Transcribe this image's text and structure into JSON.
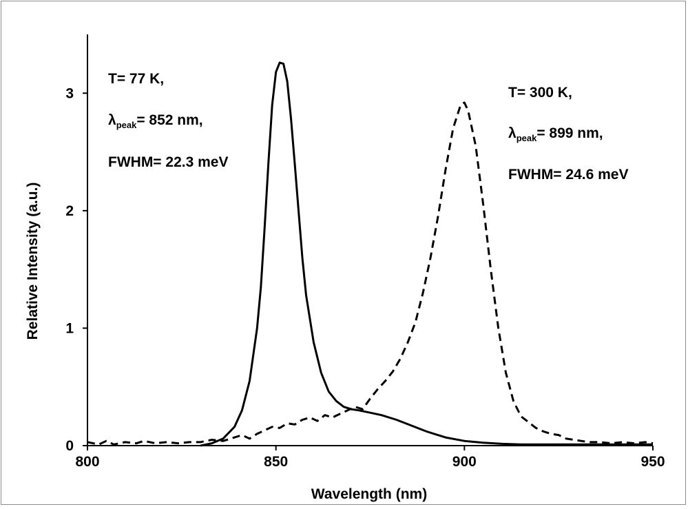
{
  "chart_data": {
    "type": "line",
    "title": "",
    "xlabel": "Wavelength (nm)",
    "ylabel": "Relative Intensity (a.u.)",
    "xlim": [
      800,
      950
    ],
    "ylim": [
      0,
      3.5
    ],
    "xticks": [
      800,
      850,
      900,
      950
    ],
    "yticks": [
      0,
      1,
      2,
      3
    ],
    "grid": false,
    "legend": "none",
    "series": [
      {
        "style": "solid",
        "color": "#000000",
        "x": [
          830,
          833,
          836,
          839,
          841,
          843,
          845,
          846,
          847,
          848,
          849,
          850,
          851,
          852,
          853,
          854,
          855,
          856,
          857,
          858,
          860,
          862,
          864,
          866,
          868,
          870,
          872,
          875,
          878,
          882,
          886,
          890,
          895,
          900,
          905,
          910,
          915,
          920,
          930,
          940,
          950
        ],
        "y": [
          0.0,
          0.02,
          0.06,
          0.16,
          0.3,
          0.55,
          1.0,
          1.35,
          1.85,
          2.4,
          2.9,
          3.18,
          3.26,
          3.25,
          3.1,
          2.78,
          2.4,
          2.0,
          1.6,
          1.28,
          0.88,
          0.62,
          0.46,
          0.38,
          0.33,
          0.31,
          0.3,
          0.28,
          0.26,
          0.22,
          0.17,
          0.12,
          0.07,
          0.04,
          0.025,
          0.015,
          0.01,
          0.01,
          0.01,
          0.01,
          0.01
        ]
      },
      {
        "style": "dashed",
        "color": "#000000",
        "x": [
          800,
          803,
          805,
          807,
          810,
          813,
          815,
          818,
          821,
          824,
          827,
          830,
          833,
          836,
          839,
          841,
          843,
          845,
          847,
          849,
          851,
          853,
          855,
          857,
          859,
          861,
          863,
          865,
          867,
          869,
          871,
          873,
          875,
          877,
          879,
          881,
          883,
          885,
          887,
          889,
          891,
          893,
          895,
          897,
          899,
          900,
          901,
          903,
          905,
          907,
          909,
          911,
          913,
          915,
          917,
          919,
          921,
          923,
          925,
          927,
          929,
          931,
          933,
          936,
          939,
          942,
          945,
          948,
          950
        ],
        "y": [
          0.03,
          0.01,
          0.04,
          0.01,
          0.03,
          0.02,
          0.04,
          0.02,
          0.03,
          0.02,
          0.03,
          0.03,
          0.05,
          0.04,
          0.07,
          0.09,
          0.06,
          0.1,
          0.13,
          0.16,
          0.15,
          0.19,
          0.18,
          0.22,
          0.24,
          0.21,
          0.26,
          0.24,
          0.27,
          0.3,
          0.33,
          0.31,
          0.4,
          0.48,
          0.55,
          0.63,
          0.74,
          0.88,
          1.05,
          1.3,
          1.6,
          1.95,
          2.35,
          2.7,
          2.9,
          2.92,
          2.85,
          2.55,
          2.05,
          1.5,
          1.0,
          0.62,
          0.38,
          0.25,
          0.2,
          0.15,
          0.12,
          0.1,
          0.09,
          0.06,
          0.05,
          0.04,
          0.03,
          0.03,
          0.02,
          0.03,
          0.02,
          0.03,
          0.02
        ]
      }
    ],
    "annotations": [
      {
        "t": "T= 77 K,",
        "lambda_sym": "λ",
        "lambda_sub": "peak",
        "lambda_rest": "= 852 nm,",
        "fwhm": "FWHM= 22.3 meV"
      },
      {
        "t": "T= 300 K,",
        "lambda_sym": "λ",
        "lambda_sub": "peak",
        "lambda_rest": "= 899 nm,",
        "fwhm": "FWHM= 24.6 meV"
      }
    ]
  }
}
